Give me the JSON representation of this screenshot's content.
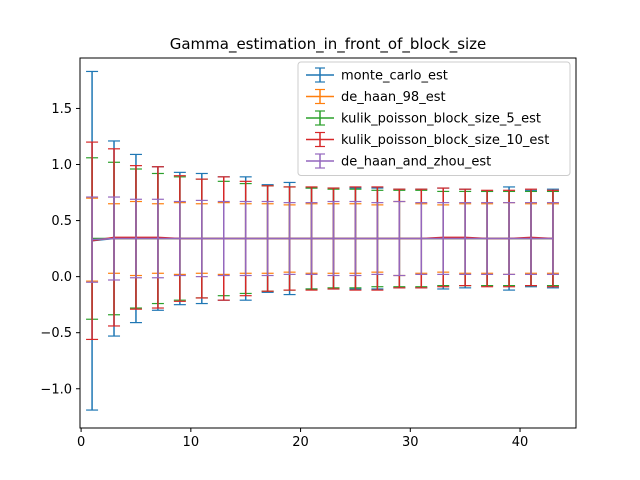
{
  "chart_data": {
    "type": "errorbar",
    "title": "Gamma_estimation_in_front_of_block_size",
    "xlabel": "",
    "ylabel": "",
    "xlim": [
      -0.1,
      45.1
    ],
    "ylim": [
      -1.35,
      1.95
    ],
    "xticks": [
      0,
      10,
      20,
      30,
      40
    ],
    "yticks": [
      -1.0,
      -0.5,
      0.0,
      0.5,
      1.0,
      1.5
    ],
    "ytick_labels": [
      "−1.0",
      "−0.5",
      "0.0",
      "0.5",
      "1.0",
      "1.5"
    ],
    "legend_location": "upper right",
    "x": [
      1,
      3,
      5,
      7,
      9,
      11,
      13,
      15,
      17,
      19,
      21,
      23,
      25,
      27,
      29,
      31,
      33,
      35,
      37,
      39,
      41,
      43
    ],
    "series": [
      {
        "name": "monte_carlo_est",
        "color": "#1f77b4",
        "y": [
          0.32,
          0.34,
          0.34,
          0.34,
          0.34,
          0.34,
          0.34,
          0.34,
          0.34,
          0.34,
          0.34,
          0.34,
          0.34,
          0.34,
          0.34,
          0.34,
          0.34,
          0.34,
          0.34,
          0.34,
          0.34,
          0.34
        ],
        "err": [
          1.51,
          0.87,
          0.75,
          0.64,
          0.59,
          0.58,
          0.55,
          0.55,
          0.48,
          0.5,
          0.45,
          0.45,
          0.45,
          0.45,
          0.44,
          0.44,
          0.45,
          0.44,
          0.42,
          0.46,
          0.43,
          0.44
        ]
      },
      {
        "name": "de_haan_98_est",
        "color": "#ff7f0e",
        "y": [
          0.33,
          0.34,
          0.34,
          0.34,
          0.34,
          0.34,
          0.34,
          0.34,
          0.34,
          0.34,
          0.34,
          0.34,
          0.34,
          0.34,
          0.34,
          0.34,
          0.34,
          0.34,
          0.34,
          0.34,
          0.34,
          0.34
        ],
        "err": [
          0.37,
          0.31,
          0.33,
          0.31,
          0.32,
          0.31,
          0.32,
          0.31,
          0.31,
          0.3,
          0.31,
          0.31,
          0.31,
          0.3,
          0.33,
          0.31,
          0.3,
          0.31,
          0.31,
          0.32,
          0.31,
          0.31
        ]
      },
      {
        "name": "kulik_poisson_block_size_5_est",
        "color": "#2ca02c",
        "y": [
          0.34,
          0.34,
          0.34,
          0.34,
          0.34,
          0.34,
          0.34,
          0.34,
          0.34,
          0.34,
          0.34,
          0.34,
          0.34,
          0.34,
          0.34,
          0.34,
          0.34,
          0.34,
          0.34,
          0.34,
          0.34,
          0.34
        ],
        "err": [
          0.72,
          0.68,
          0.62,
          0.58,
          0.55,
          0.53,
          0.51,
          0.49,
          0.47,
          0.46,
          0.45,
          0.44,
          0.44,
          0.43,
          0.43,
          0.43,
          0.42,
          0.42,
          0.42,
          0.42,
          0.42,
          0.42
        ]
      },
      {
        "name": "kulik_poisson_block_size_10_est",
        "color": "#d62728",
        "y": [
          0.32,
          0.35,
          0.35,
          0.35,
          0.34,
          0.34,
          0.34,
          0.34,
          0.34,
          0.34,
          0.34,
          0.34,
          0.34,
          0.34,
          0.34,
          0.34,
          0.35,
          0.35,
          0.34,
          0.34,
          0.35,
          0.34
        ],
        "err": [
          0.88,
          0.79,
          0.64,
          0.63,
          0.56,
          0.53,
          0.55,
          0.51,
          0.47,
          0.46,
          0.46,
          0.45,
          0.46,
          0.46,
          0.44,
          0.44,
          0.44,
          0.43,
          0.43,
          0.43,
          0.43,
          0.43
        ]
      },
      {
        "name": "de_haan_and_zhou_est",
        "color": "#9467bd",
        "y": [
          0.33,
          0.34,
          0.34,
          0.34,
          0.34,
          0.34,
          0.34,
          0.34,
          0.34,
          0.34,
          0.34,
          0.34,
          0.34,
          0.34,
          0.34,
          0.34,
          0.34,
          0.34,
          0.34,
          0.34,
          0.34,
          0.34
        ],
        "err": [
          0.38,
          0.37,
          0.35,
          0.35,
          0.33,
          0.34,
          0.33,
          0.33,
          0.33,
          0.32,
          0.32,
          0.33,
          0.33,
          0.32,
          0.33,
          0.32,
          0.32,
          0.32,
          0.32,
          0.32,
          0.32,
          0.32
        ]
      }
    ]
  }
}
